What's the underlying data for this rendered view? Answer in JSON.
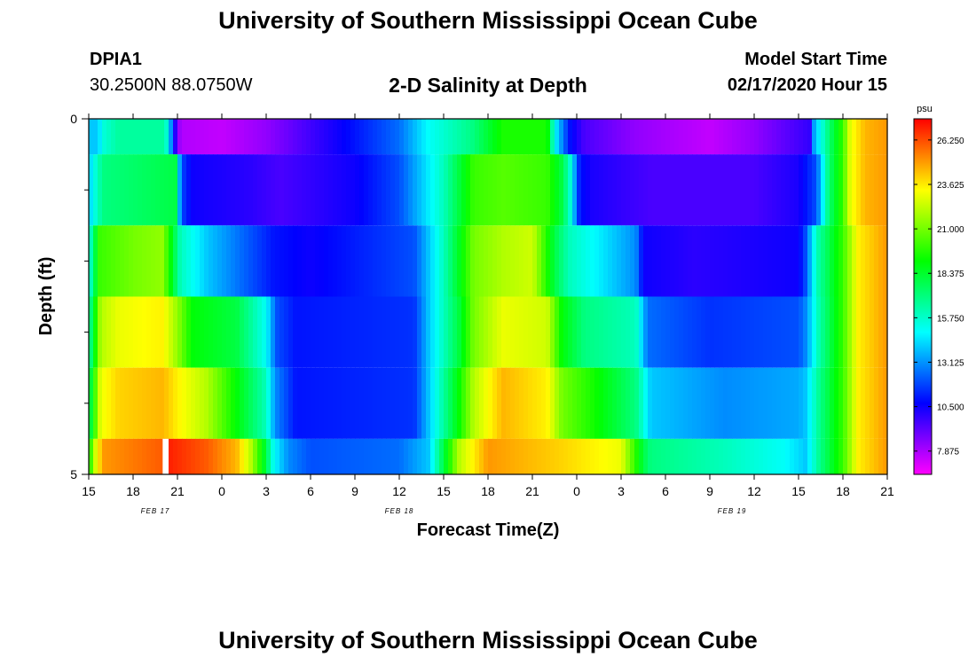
{
  "header": {
    "title": "University of Southern Mississippi Ocean Cube",
    "station": "DPIA1",
    "coords": "30.2500N 88.0750W",
    "subtitle": "2-D Salinity at Depth",
    "start_label": "Model Start Time",
    "start_value": "02/17/2020 Hour 15"
  },
  "footer": {
    "title": "University of Southern Mississippi Ocean Cube"
  },
  "chart_data": {
    "type": "heatmap",
    "title": "2-D Salinity at Depth",
    "xlabel": "Forecast Time(Z)",
    "ylabel": "Depth (ft)",
    "x_tick_labels": [
      "15",
      "18",
      "21",
      "0",
      "3",
      "6",
      "9",
      "12",
      "15",
      "18",
      "21",
      "0",
      "3",
      "6",
      "9",
      "12",
      "15",
      "18",
      "21"
    ],
    "x_date_labels": [
      {
        "label": "FEB 17",
        "tick_index": 1.5
      },
      {
        "label": "FEB 18",
        "tick_index": 7
      },
      {
        "label": "FEB 19",
        "tick_index": 14.5
      }
    ],
    "x_range_hours": [
      0,
      54
    ],
    "y_range": [
      0,
      5
    ],
    "y_tick_labels": [
      "0",
      "5"
    ],
    "y_minor_ticks": [
      1,
      2,
      3,
      4
    ],
    "colorbar": {
      "units": "psu",
      "ticks": [
        "26.250",
        "23.625",
        "21.000",
        "18.375",
        "15.750",
        "13.125",
        "10.500",
        "7.875"
      ],
      "tick_values": [
        26.25,
        23.625,
        21.0,
        18.375,
        15.75,
        13.125,
        10.5,
        7.875
      ],
      "range": [
        6.5,
        27.5
      ]
    },
    "bands": [
      {
        "depth": [
          0,
          0.5
        ],
        "keys": [
          [
            0,
            14
          ],
          [
            0.6,
            14
          ],
          [
            1,
            15.5
          ],
          [
            2,
            16.5
          ],
          [
            5,
            16.5
          ],
          [
            5.4,
            15.3
          ],
          [
            5.7,
            11
          ],
          [
            6.2,
            7.8
          ],
          [
            9,
            7.5
          ],
          [
            12,
            8.3
          ],
          [
            18,
            11
          ],
          [
            21,
            12.5
          ],
          [
            23,
            15
          ],
          [
            26,
            17
          ],
          [
            28,
            19.5
          ],
          [
            31,
            19.5
          ],
          [
            31.5,
            15
          ],
          [
            32.5,
            11
          ],
          [
            33.5,
            9.5
          ],
          [
            37,
            8.3
          ],
          [
            42,
            7.5
          ],
          [
            45,
            8.3
          ],
          [
            49,
            10
          ],
          [
            48.5,
            11
          ],
          [
            49.2,
            14
          ],
          [
            50,
            17
          ],
          [
            51,
            20
          ],
          [
            51.5,
            23
          ],
          [
            52.5,
            24.5
          ],
          [
            54,
            25
          ]
        ]
      },
      {
        "depth": [
          0.5,
          1.5
        ],
        "keys": [
          [
            0,
            14
          ],
          [
            0.6,
            16
          ],
          [
            1,
            17
          ],
          [
            6,
            18
          ],
          [
            6.2,
            12
          ],
          [
            7,
            10.5
          ],
          [
            11,
            10
          ],
          [
            13,
            9.5
          ],
          [
            18,
            10.5
          ],
          [
            21,
            12
          ],
          [
            24,
            16
          ],
          [
            26,
            20
          ],
          [
            28,
            20.5
          ],
          [
            31,
            20
          ],
          [
            32,
            18
          ],
          [
            32.5,
            16
          ],
          [
            33.2,
            11
          ],
          [
            34,
            10.3
          ],
          [
            38,
            9.5
          ],
          [
            45,
            9.5
          ],
          [
            48,
            10.3
          ],
          [
            49.2,
            12
          ],
          [
            50,
            17
          ],
          [
            51,
            20
          ],
          [
            51.5,
            23
          ],
          [
            52.5,
            24.5
          ],
          [
            54,
            25
          ]
        ]
      },
      {
        "depth": [
          1.5,
          2.5
        ],
        "keys": [
          [
            0,
            15
          ],
          [
            0.7,
            20
          ],
          [
            3,
            21
          ],
          [
            5,
            21.5
          ],
          [
            6.2,
            16
          ],
          [
            8,
            14
          ],
          [
            11,
            12
          ],
          [
            12.5,
            11
          ],
          [
            15,
            10.5
          ],
          [
            22,
            12
          ],
          [
            24,
            16
          ],
          [
            26,
            21
          ],
          [
            28,
            22
          ],
          [
            30,
            22.5
          ],
          [
            31.5,
            18
          ],
          [
            32.5,
            16
          ],
          [
            37,
            13
          ],
          [
            37.5,
            10.5
          ],
          [
            41,
            10
          ],
          [
            48,
            10.5
          ],
          [
            48.5,
            12
          ],
          [
            49.2,
            16
          ],
          [
            51,
            20
          ],
          [
            52,
            23.5
          ],
          [
            54,
            25
          ]
        ]
      },
      {
        "depth": [
          2.5,
          3.5
        ],
        "keys": [
          [
            0,
            16
          ],
          [
            0.8,
            22
          ],
          [
            2,
            23
          ],
          [
            5,
            23.5
          ],
          [
            6,
            21.5
          ],
          [
            7,
            19
          ],
          [
            10,
            18
          ],
          [
            12,
            15
          ],
          [
            12.7,
            12
          ],
          [
            14,
            11
          ],
          [
            22,
            11.5
          ],
          [
            23,
            14
          ],
          [
            25,
            18
          ],
          [
            26,
            21
          ],
          [
            28,
            23
          ],
          [
            31,
            22.5
          ],
          [
            32,
            19
          ],
          [
            33.5,
            17
          ],
          [
            37,
            16
          ],
          [
            37.8,
            12.5
          ],
          [
            42,
            11.5
          ],
          [
            48,
            12
          ],
          [
            48.5,
            13
          ],
          [
            49.3,
            16
          ],
          [
            51,
            20
          ],
          [
            52,
            23.5
          ],
          [
            54,
            25
          ]
        ]
      },
      {
        "depth": [
          3.5,
          4.5
        ],
        "keys": [
          [
            0,
            17
          ],
          [
            0.8,
            23
          ],
          [
            2,
            24
          ],
          [
            5,
            24.5
          ],
          [
            6,
            23.5
          ],
          [
            8,
            22
          ],
          [
            10,
            19
          ],
          [
            12,
            16
          ],
          [
            12.6,
            13
          ],
          [
            14,
            11
          ],
          [
            22,
            11.5
          ],
          [
            23,
            14
          ],
          [
            25,
            19
          ],
          [
            26,
            22
          ],
          [
            28,
            24.5
          ],
          [
            31,
            23.5
          ],
          [
            32,
            21
          ],
          [
            34,
            19.5
          ],
          [
            37,
            17
          ],
          [
            38,
            14
          ],
          [
            43,
            13
          ],
          [
            48,
            13.5
          ],
          [
            48.5,
            14
          ],
          [
            49.3,
            16.5
          ],
          [
            51,
            20
          ],
          [
            52,
            23.5
          ],
          [
            54,
            25
          ]
        ]
      },
      {
        "depth": [
          4.5,
          5.0
        ],
        "keys": [
          [
            0,
            19
          ],
          [
            0.5,
            23
          ],
          [
            1,
            25
          ],
          [
            5,
            26
          ],
          [
            5.4,
            27
          ],
          [
            8,
            26
          ],
          [
            10,
            24.5
          ],
          [
            11,
            22
          ],
          [
            12,
            18
          ],
          [
            12.5,
            15
          ],
          [
            13.5,
            13
          ],
          [
            15,
            12
          ],
          [
            21,
            12.5
          ],
          [
            23,
            14
          ],
          [
            24,
            18
          ],
          [
            25,
            22
          ],
          [
            27,
            25
          ],
          [
            32,
            24
          ],
          [
            36,
            23
          ],
          [
            37.5,
            18
          ],
          [
            38,
            17
          ],
          [
            43,
            16
          ],
          [
            47,
            15
          ],
          [
            48.5,
            14
          ],
          [
            49.3,
            16.5
          ],
          [
            51,
            20
          ],
          [
            52,
            23.5
          ],
          [
            54,
            25
          ]
        ]
      }
    ],
    "missing_cells": [
      {
        "hours": [
          5,
          5.4
        ],
        "depth": [
          4.5,
          5.0
        ]
      }
    ]
  }
}
